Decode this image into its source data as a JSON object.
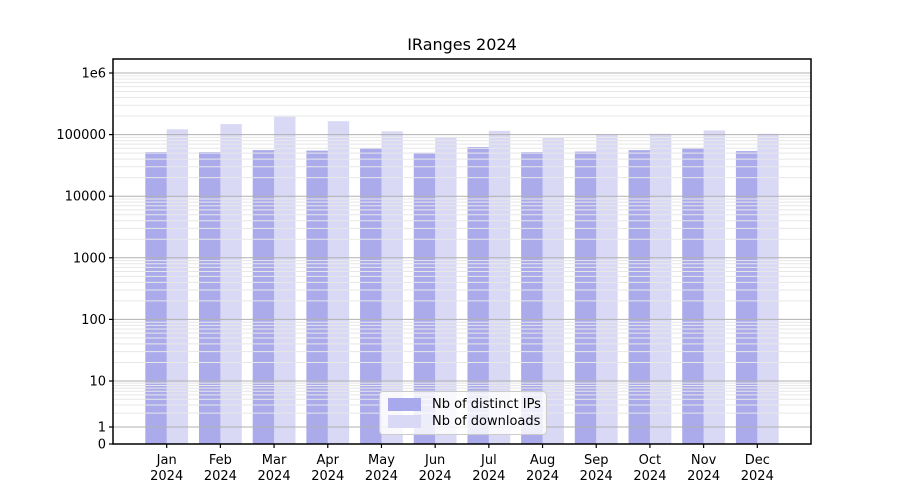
{
  "chart_data": {
    "type": "bar",
    "title": "IRanges 2024",
    "categories": [
      "Jan",
      "Feb",
      "Mar",
      "Apr",
      "May",
      "Jun",
      "Jul",
      "Aug",
      "Sep",
      "Oct",
      "Nov",
      "Dec"
    ],
    "year": "2024",
    "series": [
      {
        "key": "distinct-ips",
        "name": "Nb of distinct IPs",
        "values": [
          52000,
          52000,
          56000,
          55000,
          60000,
          51000,
          63000,
          52000,
          53000,
          56000,
          61000,
          54000
        ],
        "fill": "#6666DD8C",
        "swatch": "#A8A8EC"
      },
      {
        "key": "downloads",
        "name": "Nb of downloads",
        "values": [
          122000,
          148000,
          195000,
          165000,
          113000,
          90000,
          115000,
          88000,
          101000,
          103000,
          117000,
          103000
        ],
        "fill": "#6666DD40",
        "swatch": "#D9D9F6"
      }
    ],
    "yscale": "symlog",
    "ylim": [
      0,
      1700000
    ],
    "ytick_values": [
      1000000,
      100000,
      10000,
      1000,
      100,
      10,
      1,
      0
    ],
    "ytick_labels": [
      "1e6",
      "100000",
      "10000",
      "1000",
      "100",
      "10",
      "1",
      "0"
    ],
    "xlabel": "",
    "ylabel": "",
    "grid": true,
    "legend_position": "lower center"
  },
  "colors": {
    "major_grid": "#b0b0b0",
    "minor_grid": "#e7e7e7",
    "axis": "#000000",
    "tick_label": "#000000",
    "legend_border": "#cccccc",
    "legend_bg": "#FFFFFFCC"
  }
}
